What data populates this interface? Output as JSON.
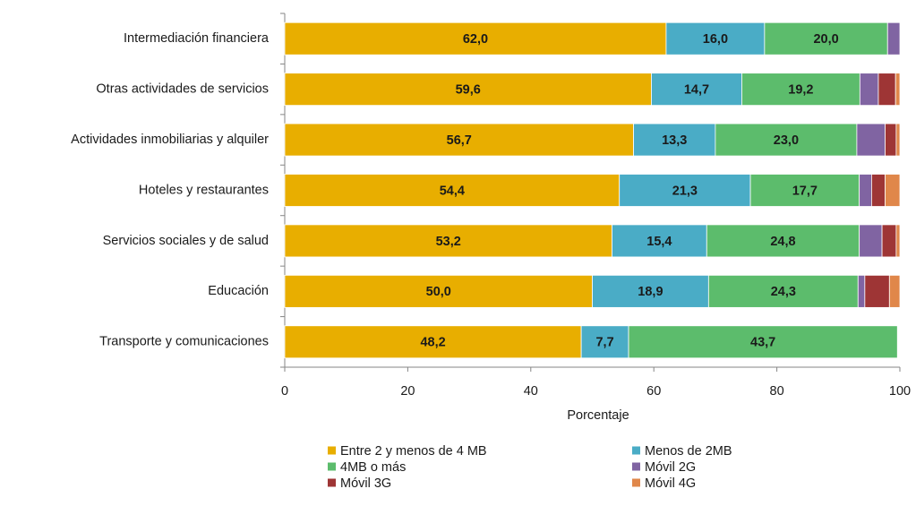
{
  "chart_data": {
    "type": "stacked-barh",
    "x_label": "Porcentaje",
    "categories": [
      "Intermediación financiera",
      "Otras actividades de servicios",
      "Actividades inmobiliarias y  alquiler",
      "Hoteles y restaurantes",
      "Servicios sociales y de salud",
      "Educación",
      "Transporte y comunicaciones"
    ],
    "series": [
      {
        "name": "Entre 2 y menos de 4 MB",
        "color": "#e8ae00",
        "values": [
          62.0,
          59.6,
          56.7,
          54.4,
          53.2,
          50.0,
          48.2
        ],
        "value_labels": [
          "62,0",
          "59,6",
          "56,7",
          "54,4",
          "53,2",
          "50,0",
          "48,2"
        ]
      },
      {
        "name": "Menos de 2MB",
        "color": "#4aacc6",
        "values": [
          16.0,
          14.7,
          13.3,
          21.3,
          15.4,
          18.9,
          7.7
        ],
        "value_labels": [
          "16,0",
          "14,7",
          "13,3",
          "21,3",
          "15,4",
          "18,9",
          "7,7"
        ]
      },
      {
        "name": "4MB o más",
        "color": "#5cbc6c",
        "values": [
          20.0,
          19.2,
          23.0,
          17.7,
          24.8,
          24.3,
          43.7
        ],
        "value_labels": [
          "20,0",
          "19,2",
          "23,0",
          "17,7",
          "24,8",
          "24,3",
          "43,7"
        ]
      },
      {
        "name": "Móvil 2G",
        "color": "#8064a2",
        "values": [
          2.0,
          3.0,
          4.6,
          2.0,
          3.7,
          1.1,
          0
        ]
      },
      {
        "name": "Móvil 3G",
        "color": "#9e3535",
        "values": [
          0,
          2.8,
          1.8,
          2.2,
          2.3,
          4.0,
          0
        ]
      },
      {
        "name": "Móvil 4G",
        "color": "#e0874a",
        "values": [
          0,
          0.7,
          0.6,
          2.4,
          0.6,
          1.7,
          0
        ]
      }
    ],
    "xlim": [
      0,
      100
    ],
    "xticks": [
      0,
      20,
      40,
      60,
      80,
      100
    ],
    "grid": false,
    "legend": "bottom"
  }
}
